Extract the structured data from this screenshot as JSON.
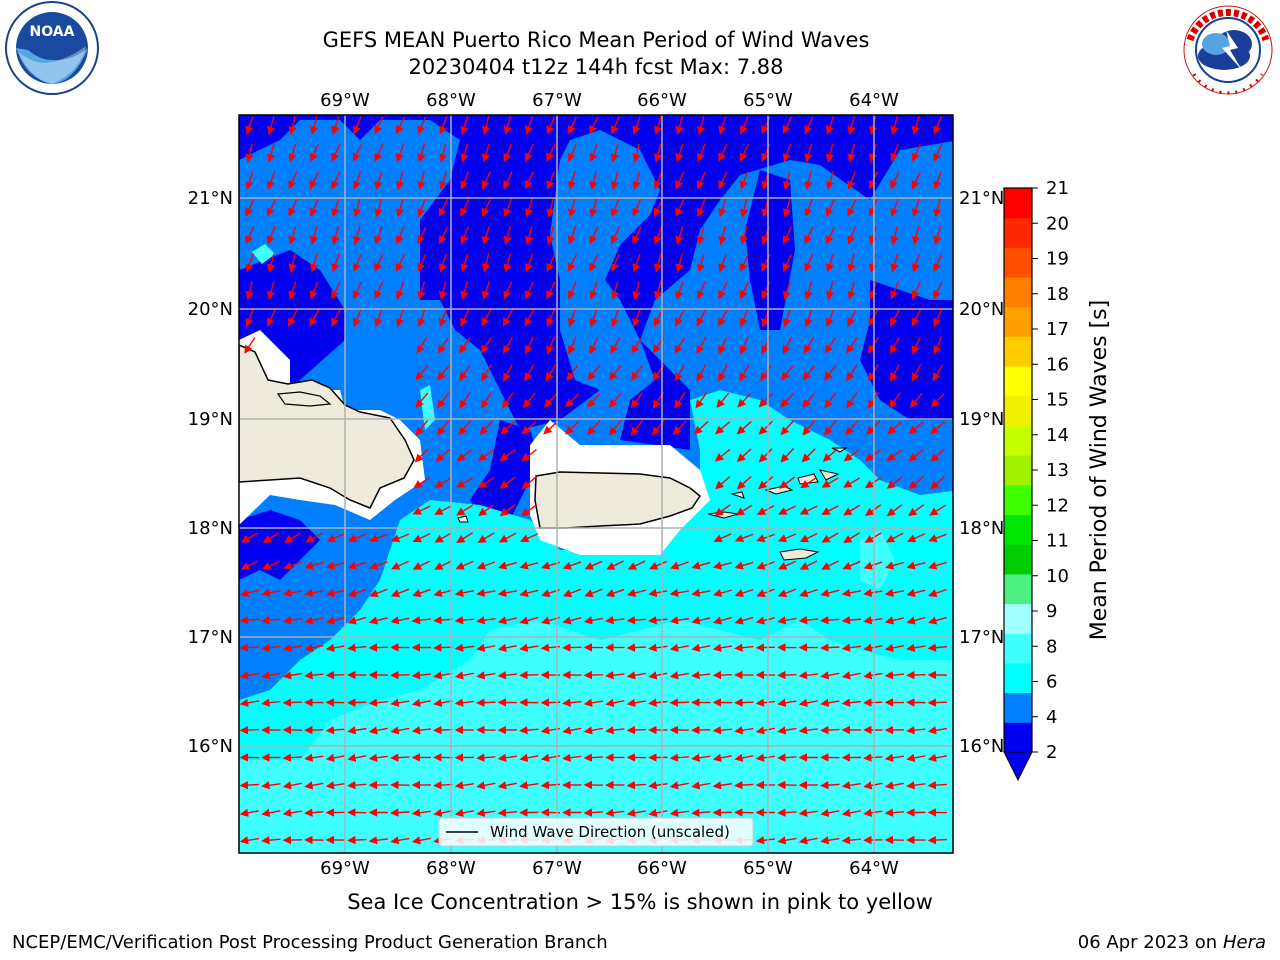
{
  "header": {
    "title_line1": "GEFS MEAN Puerto Rico Mean Period of Wind Waves",
    "title_line2": "20230404 t12z 144h fcst   Max: 7.88"
  },
  "logos": {
    "left": {
      "name": "noaa-logo",
      "text": "NOAA",
      "ring_text": "NATIONAL OCEANIC AND ATMOSPHERIC ADMINISTRATION · U.S. DEPARTMENT OF COMMERCE"
    },
    "right": {
      "name": "nws-logo",
      "ring_text": "NATIONAL WEATHER SERVICE"
    }
  },
  "map": {
    "lon_labels": [
      "69°W",
      "68°W",
      "67°W",
      "66°W",
      "65°W",
      "64°W"
    ],
    "lat_labels": [
      "21°N",
      "20°N",
      "19°N",
      "18°N",
      "17°N",
      "16°N"
    ],
    "legend_label": "Wind Wave Direction (unscaled)",
    "arrow_color": "#ff0000",
    "land_color": "#efebdc"
  },
  "colorbar": {
    "label": "Mean Period of Wind Waves [s]",
    "ticks": [
      "2",
      "4",
      "6",
      "8",
      "9",
      "10",
      "11",
      "12",
      "13",
      "14",
      "15",
      "16",
      "17",
      "18",
      "19",
      "20",
      "21"
    ],
    "colors": [
      "#0000ee",
      "#0080ff",
      "#00ffff",
      "#40ffff",
      "#a0ffff",
      "#4cf080",
      "#00cc00",
      "#00e600",
      "#40ff00",
      "#a0f000",
      "#c8ff00",
      "#f0f000",
      "#ffff00",
      "#ffcc00",
      "#ffa000",
      "#ff8000",
      "#ff5000",
      "#ff2800",
      "#ff0000"
    ],
    "extend": "min"
  },
  "caption": "Sea Ice Concentration > 15% is shown in pink to yellow",
  "footer": {
    "left": "NCEP/EMC/Verification Post Processing Product Generation Branch",
    "right_date": "06 Apr 2023 on ",
    "right_host": "Hera"
  }
}
